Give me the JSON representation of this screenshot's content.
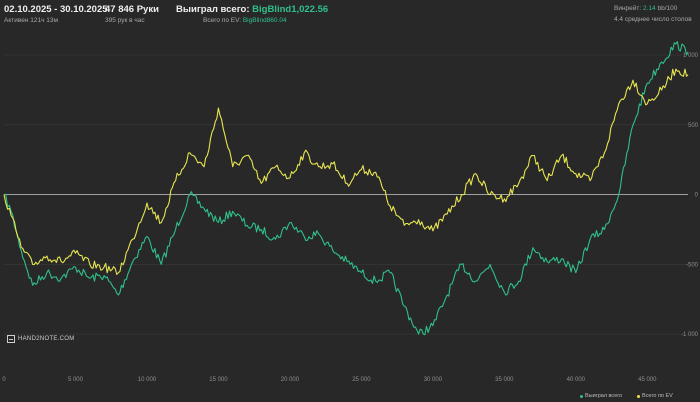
{
  "header": {
    "date_range": "02.10.2025 - 30.10.2025",
    "active": "Активен 121ч 13м",
    "hands": "47 846 Руки",
    "hands_per_hour": "395 рук в час",
    "won_label": "Выиграл всего: ",
    "won_value": "BigBlind1,022.56",
    "ev_label": "Всего по EV: ",
    "ev_value": "BigBlind860.04",
    "winrate_label": "Винрейт: ",
    "winrate_value": "2.14",
    "winrate_suffix": " bb/100",
    "tables": "4.4 среднее число столов"
  },
  "logo_text": "HAND2NOTE.COM",
  "chart_data": {
    "type": "line",
    "xlim": [
      0,
      47846
    ],
    "ylim": [
      -1200,
      1180
    ],
    "x_ticks": [
      "0",
      "5 000",
      "10 000",
      "15 000",
      "20 000",
      "25 000",
      "30 000",
      "35 000",
      "40 000",
      "45 000"
    ],
    "y_ticks": [
      "1 000",
      "500",
      "0",
      "-500",
      "-1 000"
    ],
    "legend": [
      "Выиграл всего",
      "Всего по EV"
    ],
    "colors": {
      "won": "#2fc08a",
      "ev": "#e8e650",
      "zero": "#c8c8c8",
      "grid": "#3a3a3a"
    },
    "series": [
      {
        "name": "Выиграл всего",
        "x": [
          0,
          500,
          1200,
          2000,
          3000,
          4000,
          5000,
          6000,
          7000,
          8000,
          9000,
          10000,
          11000,
          12000,
          13000,
          14000,
          15000,
          16000,
          17000,
          18000,
          19000,
          20000,
          21000,
          22000,
          23000,
          24000,
          25000,
          26000,
          27000,
          28000,
          29000,
          30000,
          31000,
          32000,
          33000,
          34000,
          35000,
          36000,
          37000,
          38000,
          39000,
          40000,
          41000,
          42000,
          43000,
          44000,
          45000,
          46000,
          47000,
          47846
        ],
        "y": [
          0,
          -120,
          -400,
          -650,
          -560,
          -600,
          -520,
          -600,
          -580,
          -720,
          -480,
          -300,
          -500,
          -250,
          0,
          -100,
          -200,
          -120,
          -220,
          -250,
          -320,
          -200,
          -300,
          -280,
          -400,
          -480,
          -560,
          -620,
          -560,
          -800,
          -1000,
          -940,
          -720,
          -500,
          -620,
          -500,
          -700,
          -620,
          -380,
          -480,
          -460,
          -560,
          -320,
          -250,
          0,
          500,
          800,
          950,
          1080,
          1022.56
        ]
      },
      {
        "name": "Всего по EV",
        "x": [
          0,
          500,
          1200,
          2000,
          3000,
          4000,
          5000,
          6000,
          7000,
          8000,
          9000,
          10000,
          11000,
          12000,
          13000,
          14000,
          15000,
          16000,
          17000,
          18000,
          19000,
          20000,
          21000,
          22000,
          23000,
          24000,
          25000,
          26000,
          27000,
          28000,
          29000,
          30000,
          31000,
          32000,
          33000,
          34000,
          35000,
          36000,
          37000,
          38000,
          39000,
          40000,
          41000,
          42000,
          43000,
          44000,
          45000,
          46000,
          47000,
          47846
        ],
        "y": [
          0,
          -150,
          -380,
          -500,
          -440,
          -480,
          -420,
          -500,
          -520,
          -560,
          -320,
          -60,
          -200,
          100,
          300,
          200,
          620,
          200,
          280,
          80,
          200,
          120,
          300,
          200,
          220,
          80,
          180,
          160,
          -80,
          -220,
          -180,
          -260,
          -140,
          0,
          150,
          0,
          -30,
          80,
          280,
          100,
          280,
          150,
          100,
          300,
          650,
          820,
          650,
          750,
          900,
          860.04
        ]
      }
    ]
  }
}
